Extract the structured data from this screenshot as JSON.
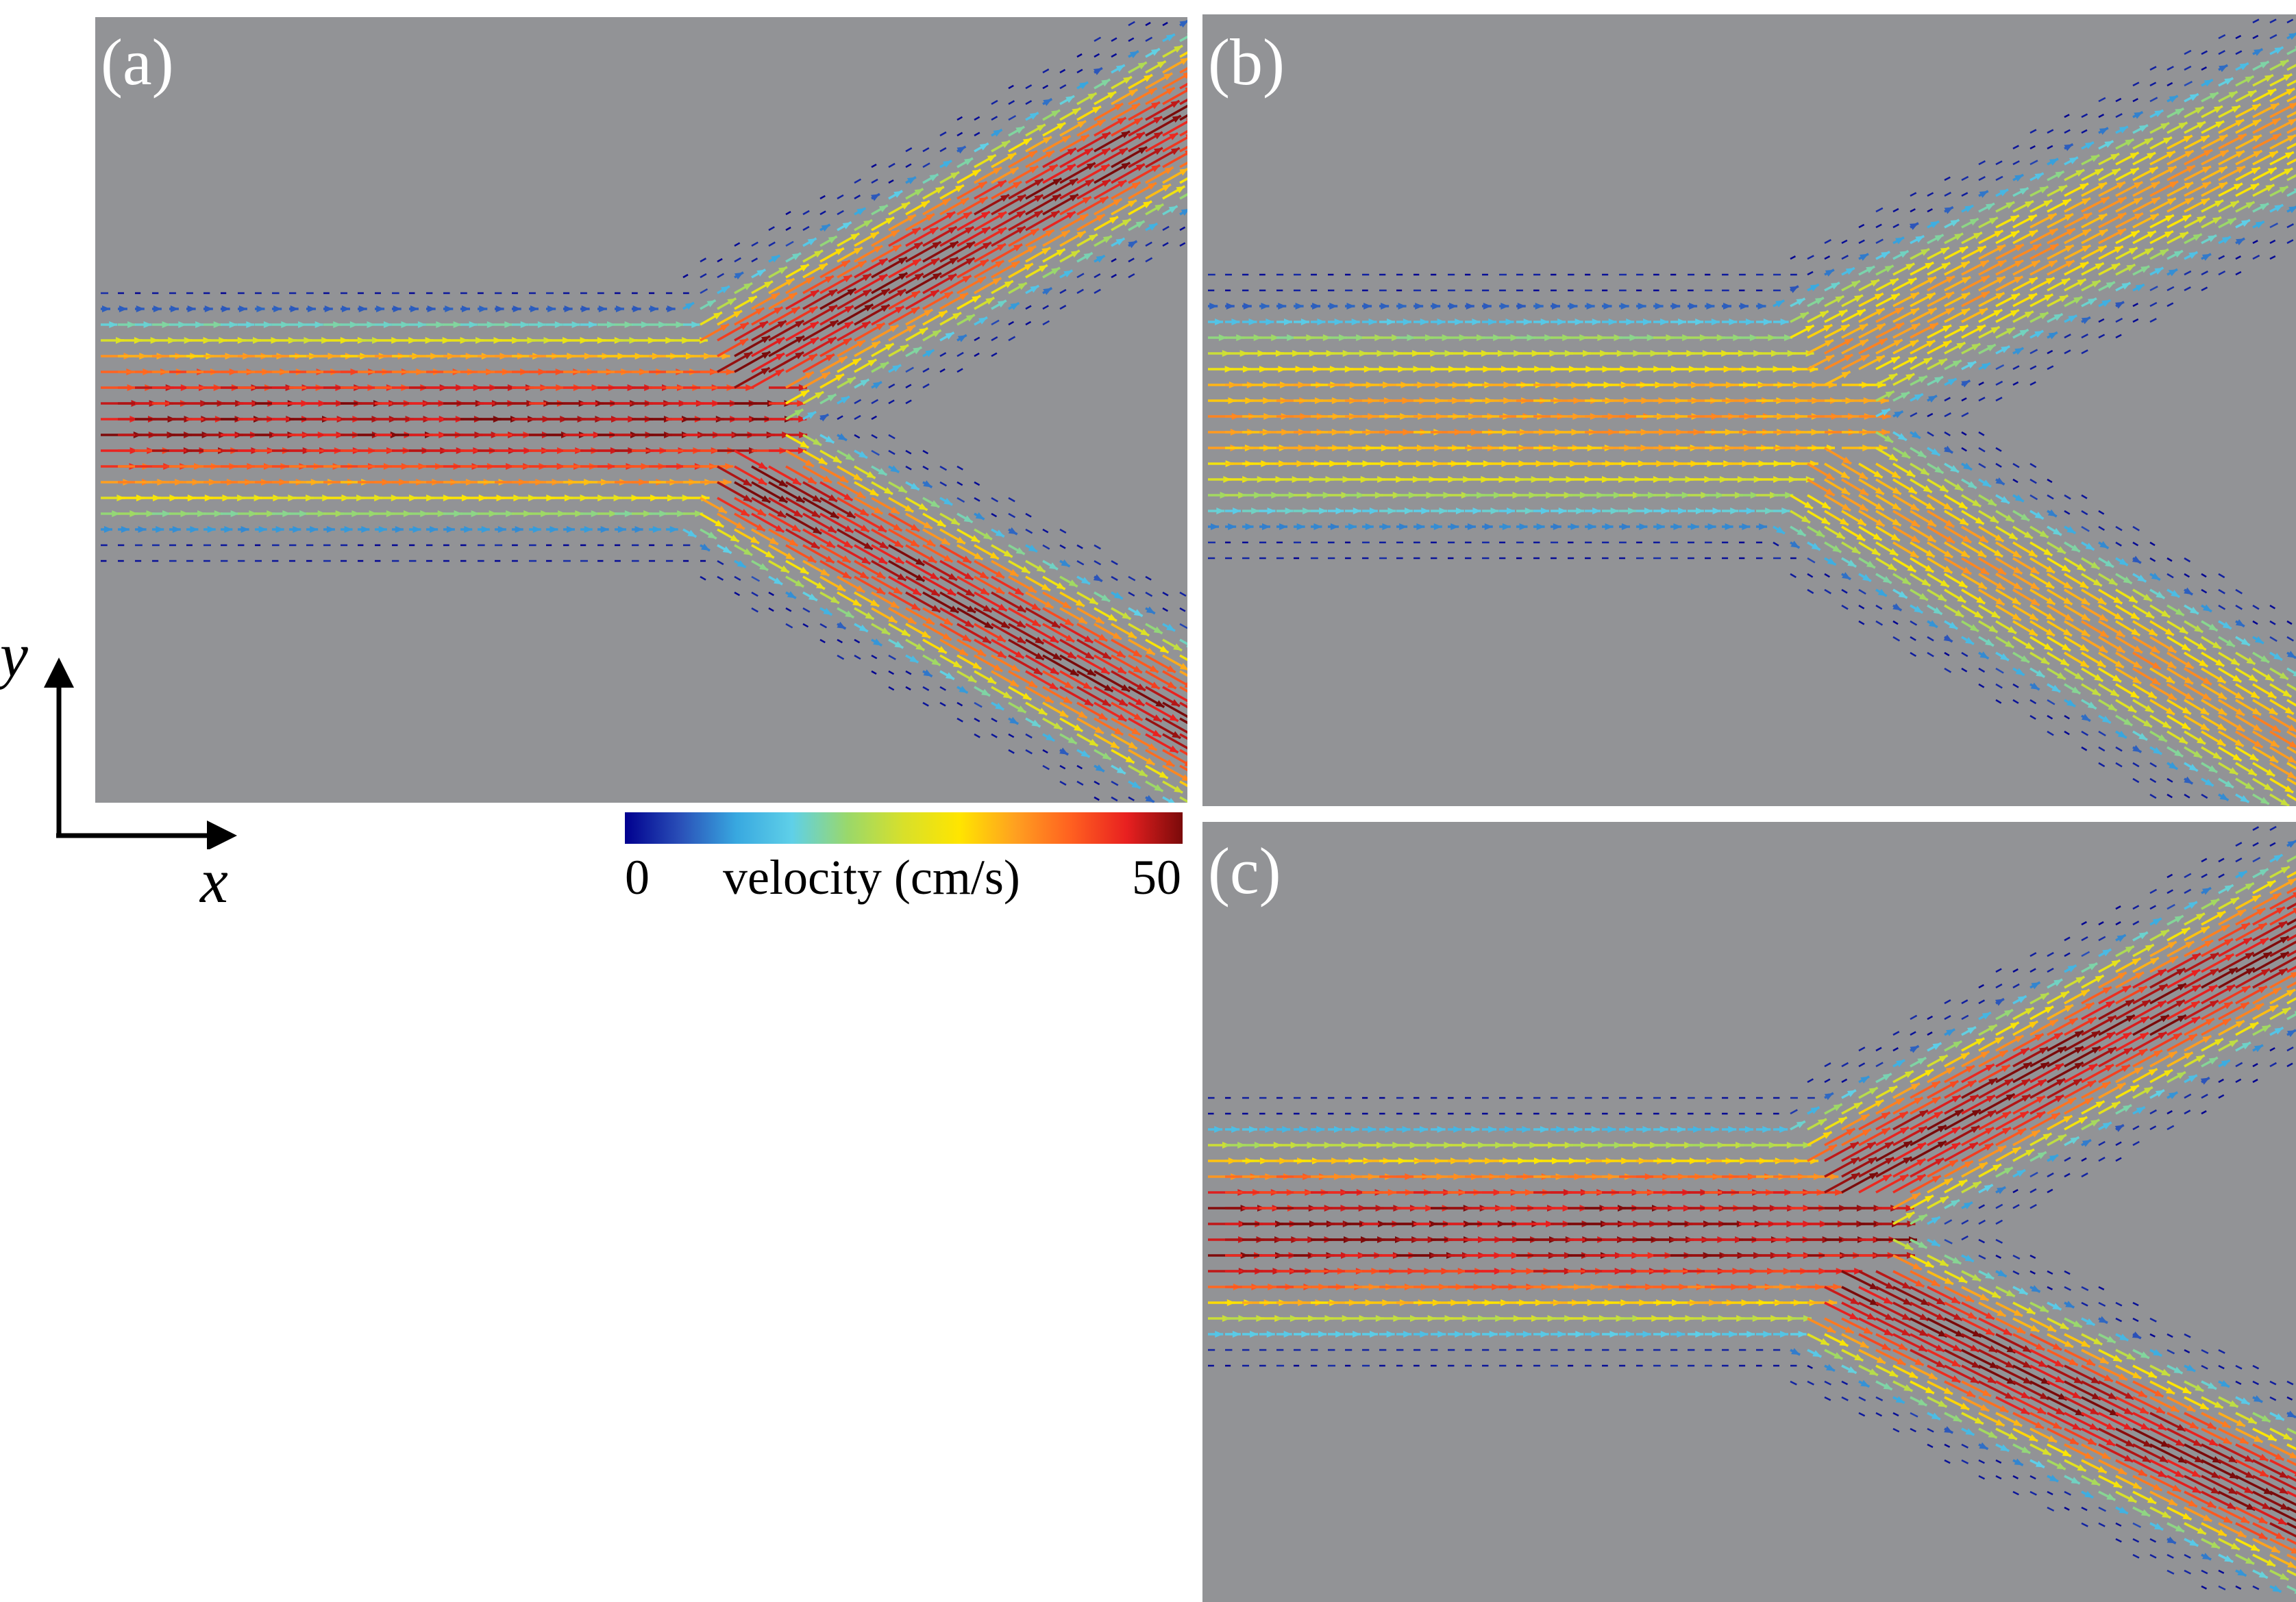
{
  "panels": [
    {
      "id": "a",
      "label": "(a)"
    },
    {
      "id": "b",
      "label": "(b)"
    },
    {
      "id": "c",
      "label": "(c)"
    }
  ],
  "colorbar": {
    "min_label": "0",
    "max_label": "50",
    "title": "velocity (cm/s)",
    "range": [
      0,
      50
    ],
    "colormap": [
      "#00008f",
      "#2a50b8",
      "#38a8e0",
      "#5fd0e8",
      "#9ad86a",
      "#d8e02a",
      "#ffe500",
      "#ffa020",
      "#ff6020",
      "#e82020",
      "#7a0a0a"
    ]
  },
  "axes": {
    "x_label": "x",
    "y_label": "y"
  },
  "colors": {
    "background": "#929396",
    "panel_label": "#ffffff"
  }
}
